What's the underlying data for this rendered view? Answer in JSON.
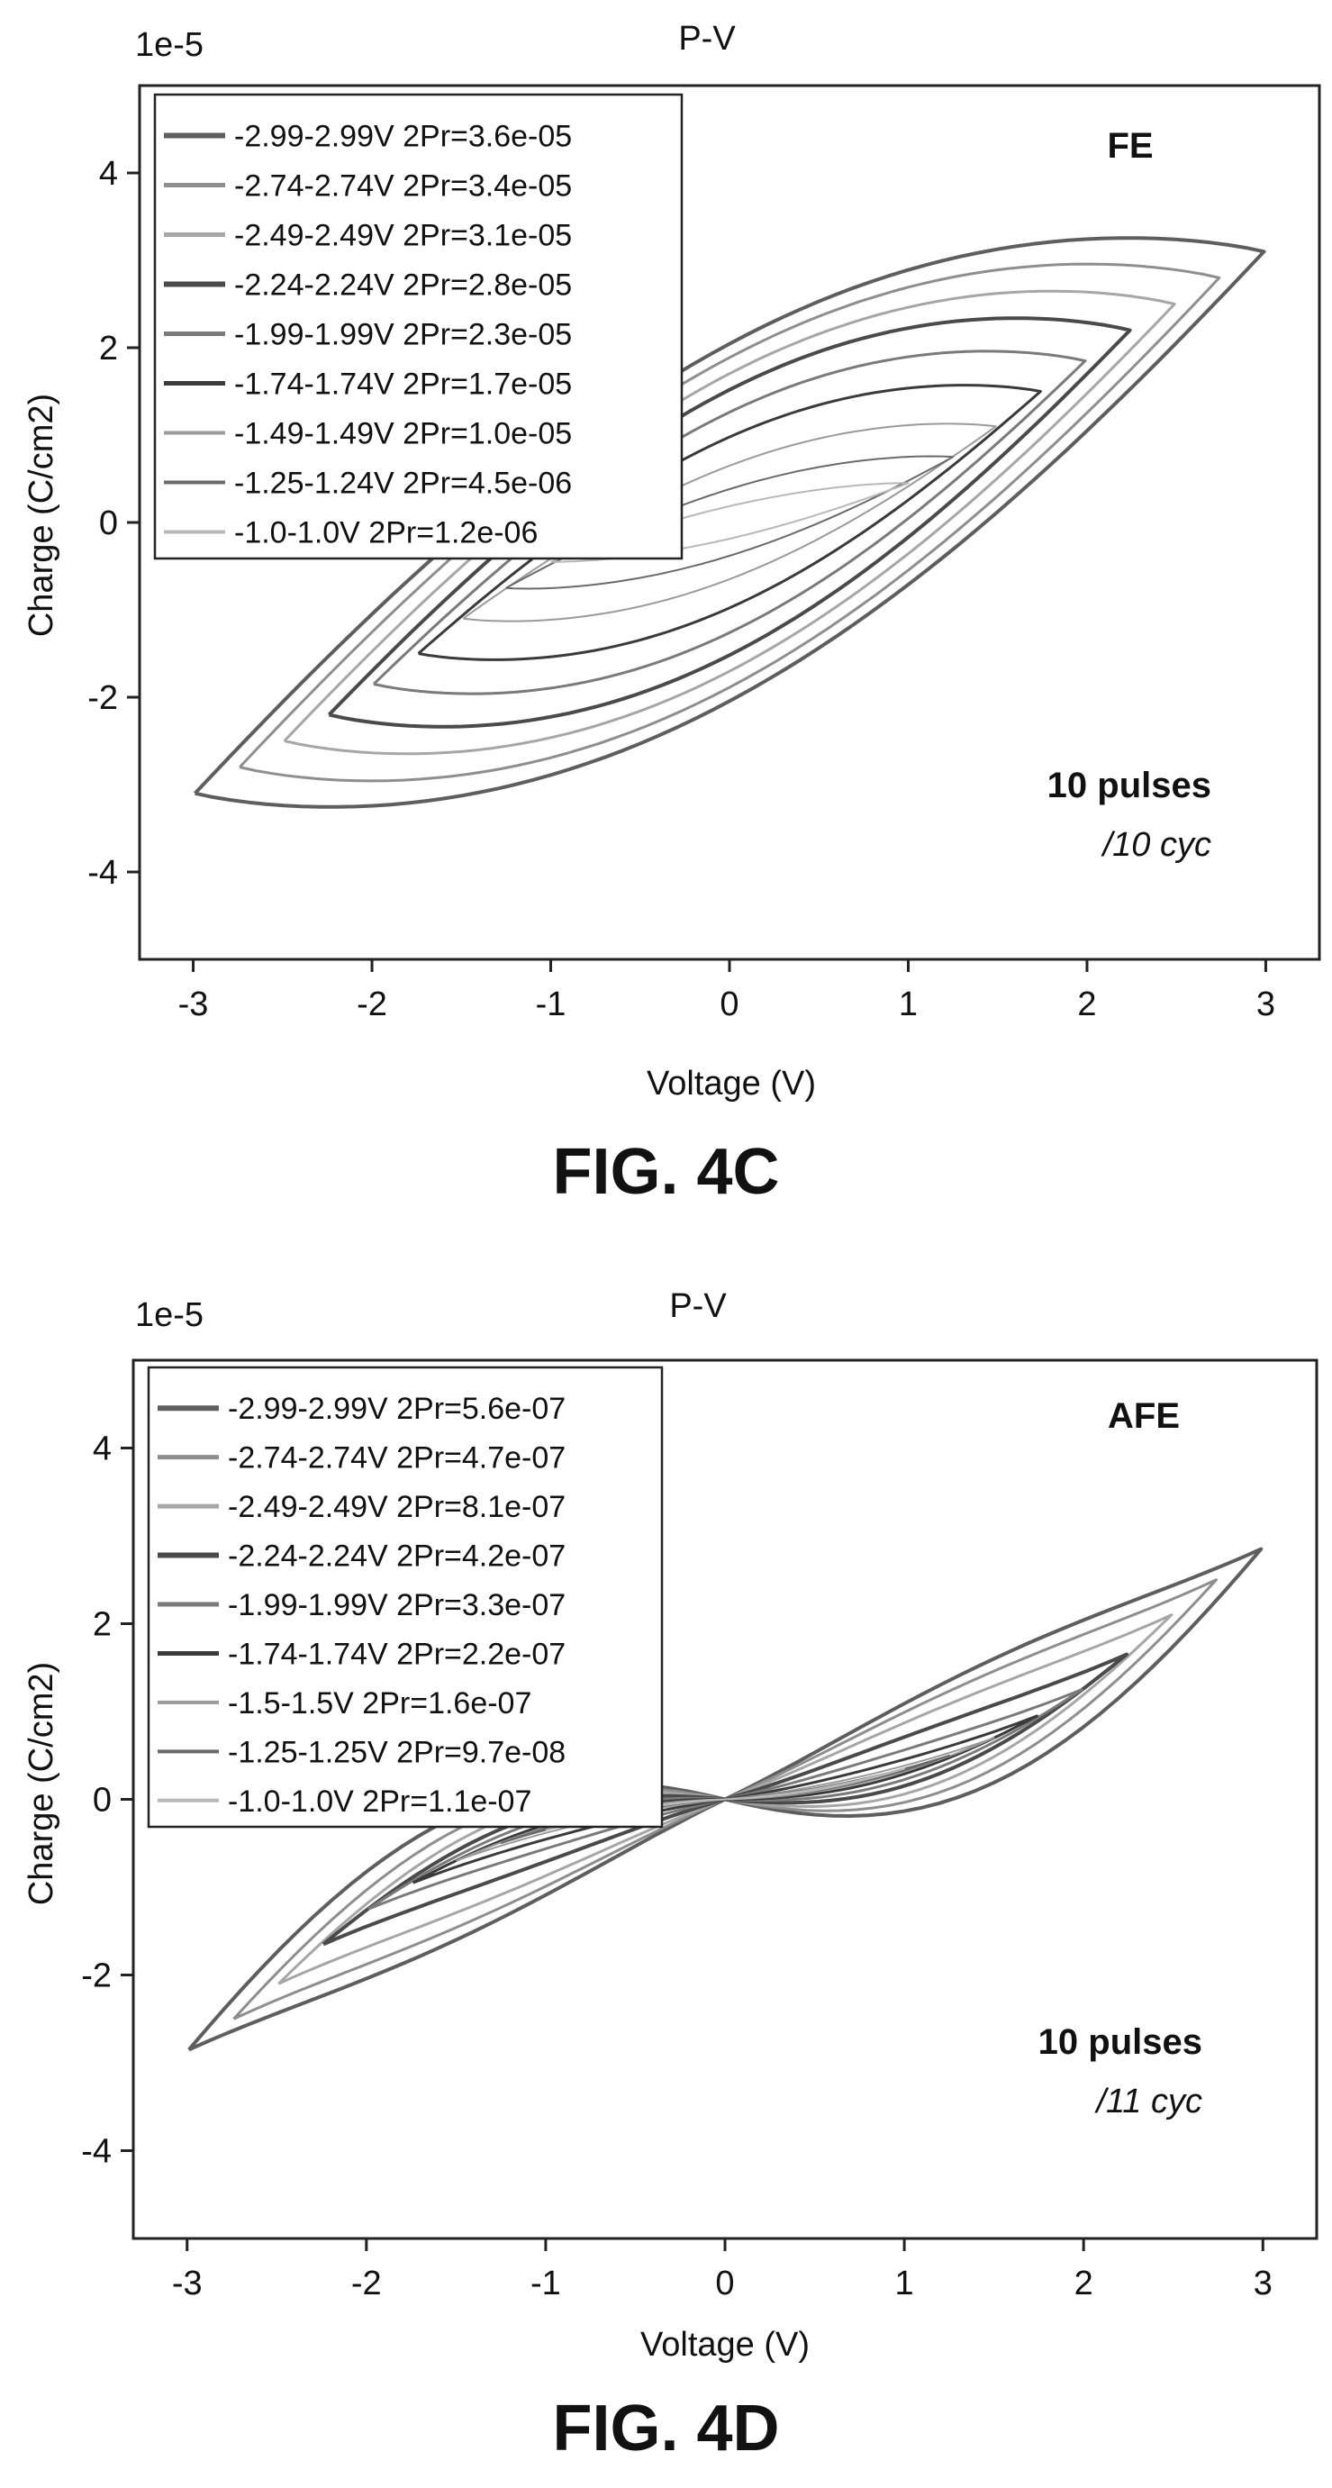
{
  "figures": [
    {
      "caption": "FIG. 4C",
      "tag": "FE",
      "pulses": "10 pulses",
      "cycles": "/10 cyc"
    },
    {
      "caption": "FIG. 4D",
      "tag": "AFE",
      "pulses": "10 pulses",
      "cycles": "/11 cyc"
    }
  ],
  "chart_data": [
    {
      "type": "line",
      "title": "P-V",
      "xlabel": "Voltage (V)",
      "ylabel": "Charge (C/cm2)",
      "y_multiplier": "1e-5",
      "xlim": [
        -3.3,
        3.3
      ],
      "ylim": [
        -5,
        5
      ],
      "xticks": [
        -3,
        -2,
        -1,
        0,
        1,
        2,
        3
      ],
      "yticks": [
        -4,
        -2,
        0,
        2,
        4
      ],
      "xtick_labels": [
        "-3",
        "-2",
        "-1",
        "0",
        "1",
        "2",
        "3"
      ],
      "ytick_labels": [
        "-4",
        "-2",
        "0",
        "2",
        "4"
      ],
      "legend_position": "top-left",
      "grid": false,
      "loop_style": "ferroelectric",
      "series": [
        {
          "name": "-2.99-2.99V 2Pr=3.6e-05",
          "vmax": 2.99,
          "qmax": 3.1,
          "qr": 1.8,
          "color": "#5e5e5e",
          "width": 4
        },
        {
          "name": "-2.74-2.74V 2Pr=3.4e-05",
          "vmax": 2.74,
          "qmax": 2.8,
          "qr": 1.7,
          "color": "#8e8e8e",
          "width": 3
        },
        {
          "name": "-2.49-2.49V 2Pr=3.1e-05",
          "vmax": 2.49,
          "qmax": 2.5,
          "qr": 1.55,
          "color": "#a6a6a6",
          "width": 3
        },
        {
          "name": "-2.24-2.24V 2Pr=2.8e-05",
          "vmax": 2.24,
          "qmax": 2.2,
          "qr": 1.4,
          "color": "#4a4a4a",
          "width": 4
        },
        {
          "name": "-1.99-1.99V 2Pr=2.3e-05",
          "vmax": 1.99,
          "qmax": 1.85,
          "qr": 1.15,
          "color": "#7a7a7a",
          "width": 3
        },
        {
          "name": "-1.74-1.74V 2Pr=1.7e-05",
          "vmax": 1.74,
          "qmax": 1.5,
          "qr": 0.85,
          "color": "#3a3a3a",
          "width": 3
        },
        {
          "name": "-1.49-1.49V 2Pr=1.0e-05",
          "vmax": 1.49,
          "qmax": 1.1,
          "qr": 0.5,
          "color": "#9a9a9a",
          "width": 2
        },
        {
          "name": "-1.25-1.24V 2Pr=4.5e-06",
          "vmax": 1.25,
          "qmax": 0.75,
          "qr": 0.23,
          "color": "#6a6a6a",
          "width": 2
        },
        {
          "name": "-1.0-1.0V 2Pr=1.2e-06",
          "vmax": 1.0,
          "qmax": 0.45,
          "qr": 0.06,
          "color": "#b8b8b8",
          "width": 2
        }
      ]
    },
    {
      "type": "line",
      "title": "P-V",
      "xlabel": "Voltage (V)",
      "ylabel": "Charge (C/cm2)",
      "y_multiplier": "1e-5",
      "xlim": [
        -3.3,
        3.3
      ],
      "ylim": [
        -5,
        5
      ],
      "xticks": [
        -3,
        -2,
        -1,
        0,
        1,
        2,
        3
      ],
      "yticks": [
        -4,
        -2,
        0,
        2,
        4
      ],
      "xtick_labels": [
        "-3",
        "-2",
        "-1",
        "0",
        "1",
        "2",
        "3"
      ],
      "ytick_labels": [
        "-4",
        "-2",
        "0",
        "2",
        "4"
      ],
      "legend_position": "top-left",
      "grid": false,
      "loop_style": "antiferroelectric",
      "series": [
        {
          "name": "-2.99-2.99V 2Pr=5.6e-07",
          "vmax": 2.99,
          "qmax": 2.85,
          "open": 0.55,
          "color": "#5e5e5e",
          "width": 4
        },
        {
          "name": "-2.74-2.74V 2Pr=4.7e-07",
          "vmax": 2.74,
          "qmax": 2.5,
          "open": 0.5,
          "color": "#8e8e8e",
          "width": 3
        },
        {
          "name": "-2.49-2.49V 2Pr=8.1e-07",
          "vmax": 2.49,
          "qmax": 2.1,
          "open": 0.45,
          "color": "#a6a6a6",
          "width": 3
        },
        {
          "name": "-2.24-2.24V 2Pr=4.2e-07",
          "vmax": 2.24,
          "qmax": 1.65,
          "open": 0.38,
          "color": "#4a4a4a",
          "width": 4
        },
        {
          "name": "-1.99-1.99V 2Pr=3.3e-07",
          "vmax": 1.99,
          "qmax": 1.25,
          "open": 0.3,
          "color": "#7a7a7a",
          "width": 3
        },
        {
          "name": "-1.74-1.74V 2Pr=2.2e-07",
          "vmax": 1.74,
          "qmax": 0.95,
          "open": 0.2,
          "color": "#3a3a3a",
          "width": 3
        },
        {
          "name": "-1.5-1.5V 2Pr=1.6e-07",
          "vmax": 1.5,
          "qmax": 0.7,
          "open": 0.12,
          "color": "#9a9a9a",
          "width": 2
        },
        {
          "name": "-1.25-1.25V 2Pr=9.7e-08",
          "vmax": 1.25,
          "qmax": 0.5,
          "open": 0.07,
          "color": "#6a6a6a",
          "width": 2
        },
        {
          "name": "-1.0-1.0V 2Pr=1.1e-07",
          "vmax": 1.0,
          "qmax": 0.35,
          "open": 0.04,
          "color": "#b8b8b8",
          "width": 2
        }
      ]
    }
  ]
}
